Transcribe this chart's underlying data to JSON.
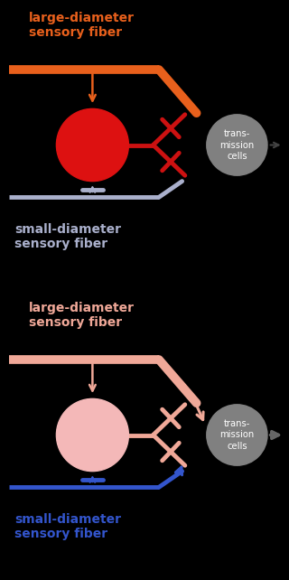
{
  "bg_color": "#000000",
  "panel1": {
    "large_fiber_color": "#e8601c",
    "large_fiber_text_color": "#e8601c",
    "large_fiber_label": "large-diameter\nsensory fiber",
    "small_fiber_color": "#aab0cc",
    "small_fiber_text_color": "#aab0cc",
    "small_fiber_label": "small-diameter\nsensory fiber",
    "gate_cell_color": "#dd1111",
    "branch_color": "#cc1111",
    "tbar_color": "#cc1111",
    "trans_cell_color": "#808080",
    "trans_label": "trans-\nmission\ncells",
    "trans_label_color": "#ffffff",
    "output_arrow_color": "#333333",
    "has_extra_arrows": false,
    "large_arrow_to_branch": false,
    "small_arrow_to_branch": false
  },
  "panel2": {
    "large_fiber_color": "#f0a898",
    "large_fiber_text_color": "#f0a898",
    "large_fiber_label": "large-diameter\nsensory fiber",
    "small_fiber_color": "#3355cc",
    "small_fiber_text_color": "#3355cc",
    "small_fiber_label": "small-diameter\nsensory fiber",
    "gate_cell_color": "#f4b8b8",
    "branch_color": "#f0a898",
    "tbar_color": "#f0a898",
    "trans_cell_color": "#808080",
    "trans_label": "trans-\nmission\ncells",
    "trans_label_color": "#ffffff",
    "output_arrow_color": "#666666",
    "has_extra_arrows": true,
    "large_arrow_to_branch": true,
    "small_arrow_to_branch": true
  }
}
